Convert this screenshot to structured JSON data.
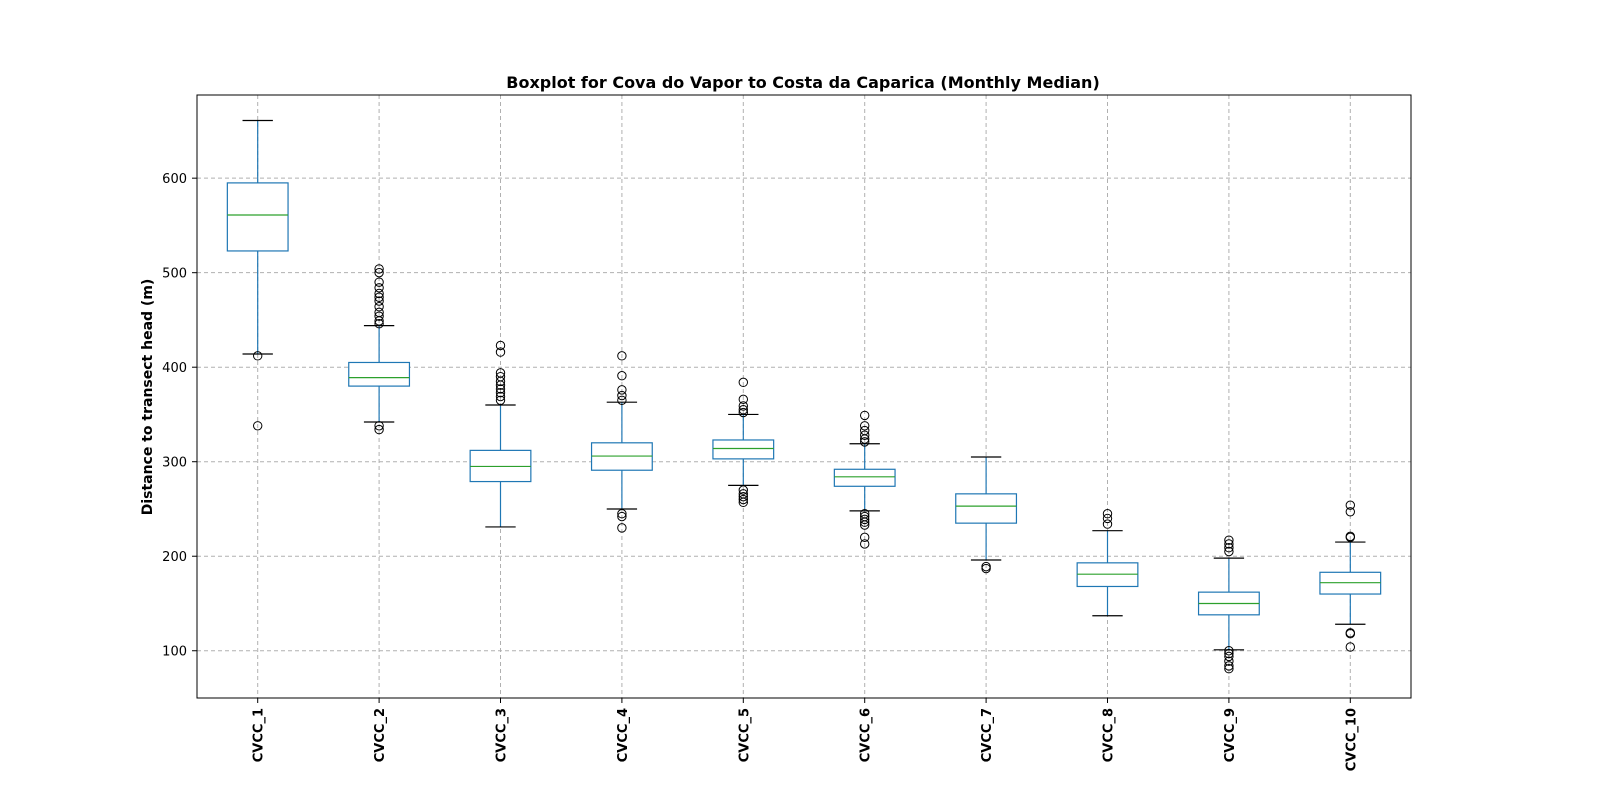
{
  "chart_data": {
    "type": "boxplot",
    "title": "Boxplot for Cova do Vapor to Costa da Caparica (Monthly Median)",
    "xlabel": "",
    "ylabel": "Distance to transect head (m)",
    "ylim": [
      50,
      688
    ],
    "yticks": [
      100,
      200,
      300,
      400,
      500,
      600
    ],
    "grid": true,
    "legend": "none",
    "colors": {
      "box": "#1f77b4",
      "median": "#2ca02c",
      "grid": "#b0b0b0",
      "flier": "#000000"
    },
    "categories": [
      "CVCC_1",
      "CVCC_2",
      "CVCC_3",
      "CVCC_4",
      "CVCC_5",
      "CVCC_6",
      "CVCC_7",
      "CVCC_8",
      "CVCC_9",
      "CVCC_10"
    ],
    "boxes": [
      {
        "whisker_low": 414,
        "q1": 523,
        "median": 561,
        "q3": 595,
        "whisker_high": 661,
        "fliers": [
          412,
          338
        ]
      },
      {
        "whisker_low": 342,
        "q1": 380,
        "median": 389,
        "q3": 405,
        "whisker_high": 444,
        "fliers": [
          504,
          500,
          490,
          484,
          478,
          474,
          470,
          464,
          458,
          454,
          449,
          446,
          338,
          334
        ]
      },
      {
        "whisker_low": 231,
        "q1": 279,
        "median": 295,
        "q3": 312,
        "whisker_high": 360,
        "fliers": [
          423,
          416,
          394,
          390,
          385,
          381,
          377,
          373,
          369,
          365
        ]
      },
      {
        "whisker_low": 250,
        "q1": 291,
        "median": 306,
        "q3": 320,
        "whisker_high": 363,
        "fliers": [
          412,
          391,
          376,
          370,
          365,
          245,
          242,
          230
        ]
      },
      {
        "whisker_low": 275,
        "q1": 303,
        "median": 314,
        "q3": 323,
        "whisker_high": 350,
        "fliers": [
          384,
          366,
          359,
          355,
          352,
          270,
          266,
          263,
          260,
          257
        ]
      },
      {
        "whisker_low": 248,
        "q1": 274,
        "median": 284,
        "q3": 292,
        "whisker_high": 319,
        "fliers": [
          349,
          338,
          333,
          328,
          324,
          321,
          245,
          242,
          239,
          236,
          233,
          220,
          213
        ]
      },
      {
        "whisker_low": 196,
        "q1": 235,
        "median": 253,
        "q3": 266,
        "whisker_high": 305,
        "fliers": [
          189,
          187
        ]
      },
      {
        "whisker_low": 137,
        "q1": 168,
        "median": 181,
        "q3": 193,
        "whisker_high": 227,
        "fliers": [
          245,
          240,
          234
        ]
      },
      {
        "whisker_low": 101,
        "q1": 138,
        "median": 150,
        "q3": 162,
        "whisker_high": 198,
        "fliers": [
          217,
          213,
          209,
          205,
          100,
          97,
          94,
          89,
          84,
          81
        ]
      },
      {
        "whisker_low": 128,
        "q1": 160,
        "median": 172,
        "q3": 183,
        "whisker_high": 215,
        "fliers": [
          254,
          247,
          221,
          220,
          119,
          118,
          104
        ]
      }
    ]
  }
}
